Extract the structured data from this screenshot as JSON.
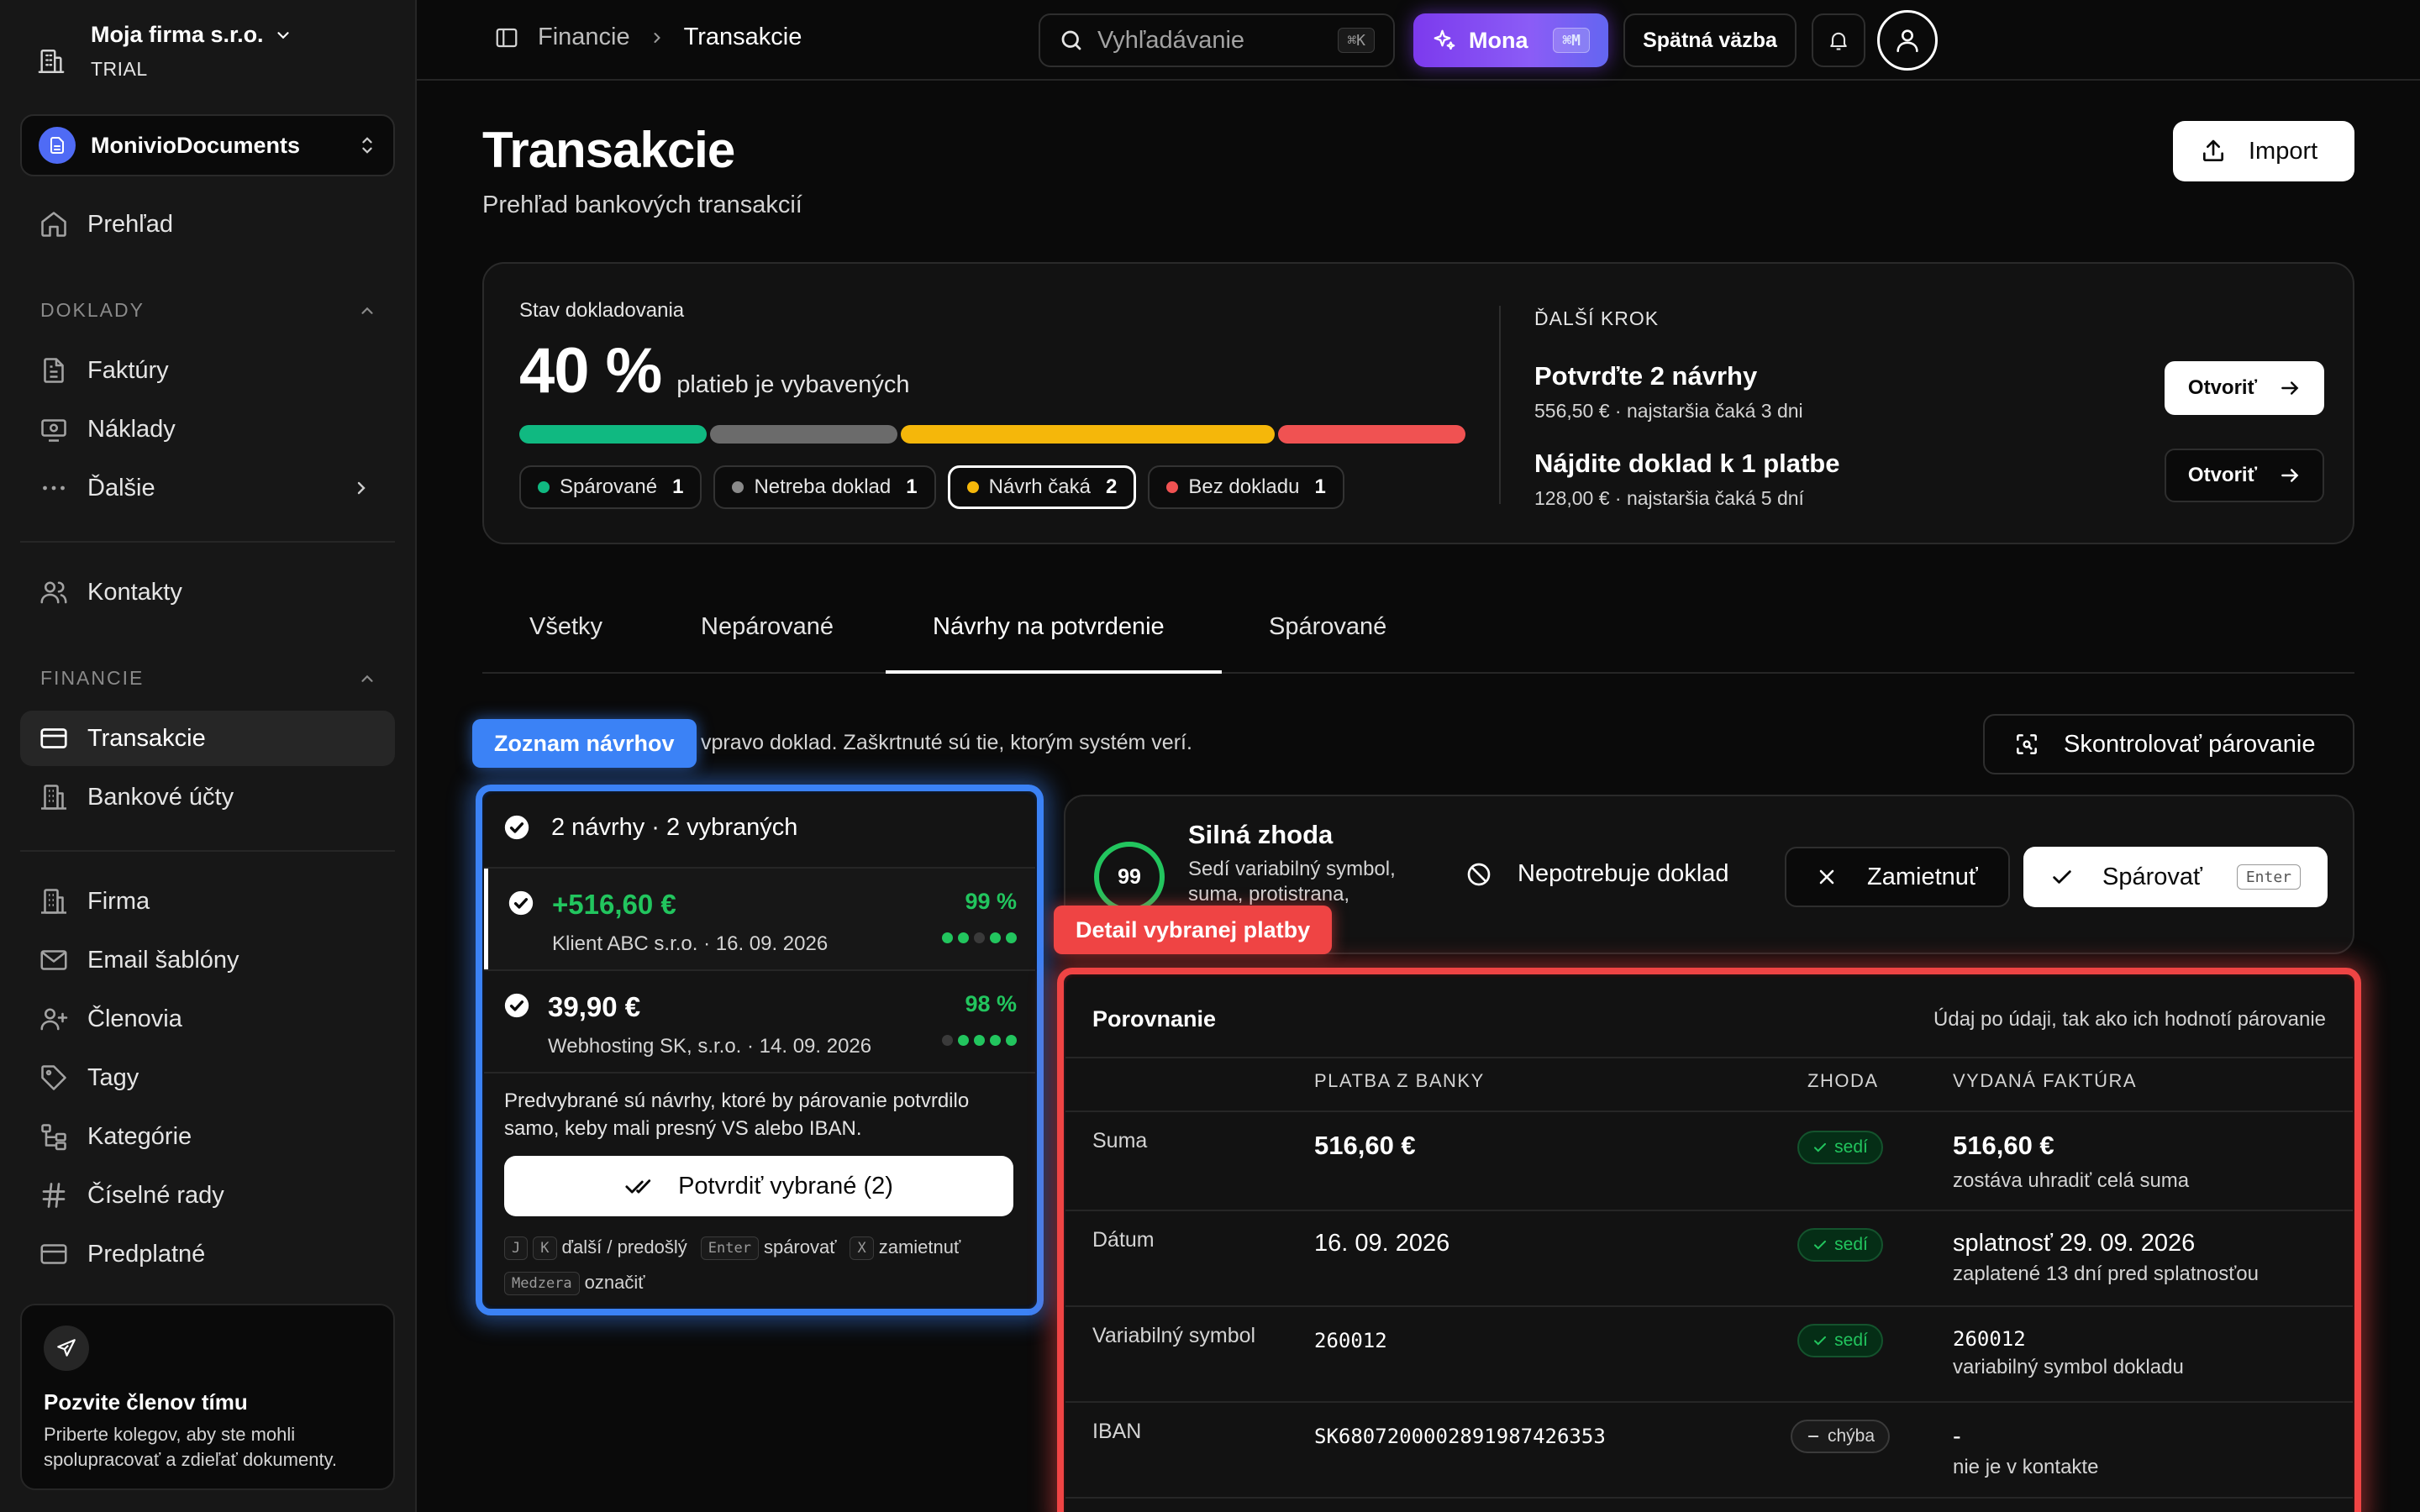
{
  "sidebar": {
    "company_name": "Moja firma s.r.o.",
    "company_plan": "TRIAL",
    "workspace": "MonivioDocuments",
    "overview": "Prehľad",
    "section_docs": "DOKLADY",
    "invoices": "Faktúry",
    "expenses": "Náklady",
    "more": "Ďalšie",
    "contacts": "Kontakty",
    "section_finance": "FINANCIE",
    "transactions": "Transakcie",
    "bank_accounts": "Bankové účty",
    "company": "Firma",
    "email_templates": "Email šablóny",
    "members": "Členovia",
    "tags": "Tagy",
    "categories": "Kategórie",
    "number_series": "Číselné rady",
    "subscription": "Predplatné",
    "invite_title": "Pozvite členov tímu",
    "invite_desc": "Priberte kolegov, aby ste mohli spolupracovať a zdieľať dokumenty."
  },
  "topbar": {
    "crumb_parent": "Financie",
    "crumb_current": "Transakcie",
    "search_placeholder": "Vyhľadávanie",
    "search_kbd": "⌘K",
    "mona_label": "Mona",
    "mona_kbd": "⌘M",
    "feedback": "Spätná väzba"
  },
  "page": {
    "title": "Transakcie",
    "subtitle": "Prehľad bankových transakcií",
    "import_label": "Import"
  },
  "status": {
    "label": "Stav dokladovania",
    "percent": "40 %",
    "percent_text": "platieb je vybavených",
    "bar_segments": [
      {
        "name": "Spárované",
        "fraction": 0.2,
        "color": "#10b981"
      },
      {
        "name": "Netreba doklad",
        "fraction": 0.2,
        "color": "#6b6b6b"
      },
      {
        "name": "Návrh čaká",
        "fraction": 0.4,
        "color": "#f5b70a"
      },
      {
        "name": "Bez dokladu",
        "fraction": 0.2,
        "color": "#f05252"
      }
    ],
    "chips": [
      {
        "label": "Spárované",
        "count": "1",
        "color": "#10b981"
      },
      {
        "label": "Netreba doklad",
        "count": "1",
        "color": "#8a8a8a"
      },
      {
        "label": "Návrh čaká",
        "count": "2",
        "color": "#f5b70a"
      },
      {
        "label": "Bez dokladu",
        "count": "1",
        "color": "#f05252"
      }
    ],
    "next_label": "ĎALŠÍ KROK",
    "next_items": [
      {
        "title": "Potvrďte 2 návrhy",
        "sub": "556,50 € · najstaršia čaká 3 dni",
        "button": "Otvoriť"
      },
      {
        "title": "Nájdite doklad k 1 platbe",
        "sub": "128,00 € · najstaršia čaká 5 dní",
        "button": "Otvoriť"
      }
    ]
  },
  "tabs": [
    "Všetky",
    "Nepárované",
    "Návrhy na potvrdenie",
    "Spárované"
  ],
  "hint": "vpravo doklad. Zaškrtnuté sú tie, ktorým systém verí.",
  "check_pairing": "Skontrolovať párovanie",
  "overlay": {
    "list_tag": "Zoznam návrhov",
    "detail_tag": "Detail vybranej platby"
  },
  "suggestions": {
    "header": "2 návrhy · 2 vybraných",
    "items": [
      {
        "amount": "+516,60 €",
        "who": "Klient ABC s.r.o. · 16. 09. 2026",
        "confidence": "99 %",
        "dots": 5,
        "positive": true
      },
      {
        "amount": "39,90 €",
        "who": "Webhosting SK, s.r.o. · 14. 09. 2026",
        "confidence": "98 %",
        "dots": 4,
        "positive": false
      }
    ],
    "note": "Predvybrané sú návrhy, ktoré by párovanie potvrdilo samo, keby mali presný VS alebo IBAN.",
    "confirm_button": "Potvrdiť vybrané (2)",
    "sc_j": "J",
    "sc_k": "K",
    "sc_jk_text": "ďalší / predošlý",
    "sc_enter": "Enter",
    "sc_enter_text": "spárovať",
    "sc_x": "X",
    "sc_x_text": "zamietnuť",
    "sc_space": "Medzera",
    "sc_space_text": "označiť"
  },
  "match": {
    "score": "99",
    "score_fraction": 0.99,
    "title": "Silná zhoda",
    "desc": "Sedí variabilný symbol, suma, protistrana,",
    "no_doc": "Nepotrebuje doklad",
    "reject": "Zamietnuť",
    "pair": "Spárovať",
    "pair_kbd": "Enter"
  },
  "comparison": {
    "title": "Porovnanie",
    "subtitle": "Údaj po údaji, tak ako ich hodnotí párovanie",
    "col_bank": "PLATBA Z BANKY",
    "col_match": "ZHODA",
    "col_invoice": "VYDANÁ FAKTÚRA",
    "rows": [
      {
        "label": "Suma",
        "bank": "516,60 €",
        "match": "sedí",
        "ok": true,
        "invoice": "516,60 €",
        "invoice_sub": "zostáva uhradiť celá suma"
      },
      {
        "label": "Dátum",
        "bank": "16. 09. 2026",
        "match": "sedí",
        "ok": true,
        "invoice": "splatnosť 29. 09. 2026",
        "invoice_sub": "zaplatené 13 dní pred splatnosťou"
      },
      {
        "label": "Variabilný symbol",
        "bank": "260012",
        "match": "sedí",
        "ok": true,
        "invoice": "260012",
        "invoice_sub": "variabilný symbol dokladu"
      },
      {
        "label": "IBAN",
        "bank": "SK6807200002891987426353",
        "match": "chýba",
        "ok": false,
        "invoice": "-",
        "invoice_sub": "nie je v kontakte"
      }
    ]
  }
}
